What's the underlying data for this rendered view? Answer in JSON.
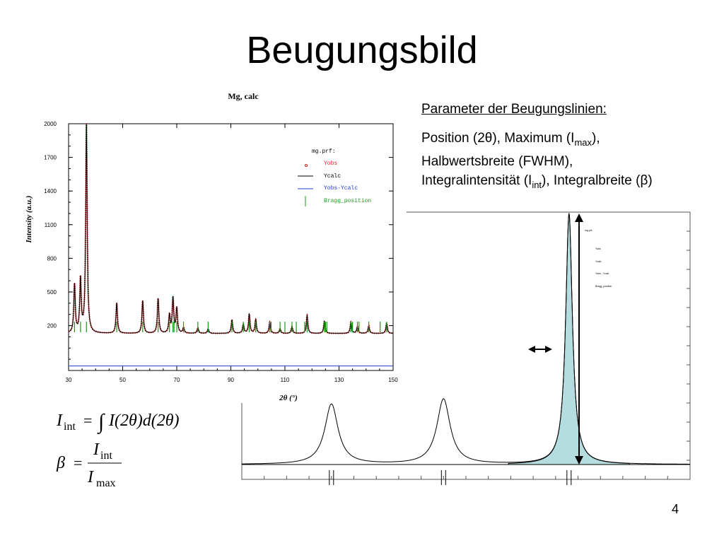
{
  "slide": {
    "title": "Beugungsbild",
    "page_number": "4",
    "parameters_heading": "Parameter der Beugungslinien:",
    "parameters_lines": [
      "Position (2θ), Maximum (I",
      "max",
      "),",
      "Halbwertsbreite (FWHM),",
      "Integralintensität (I",
      "int",
      "), Integralbreite (β)"
    ]
  },
  "formulas": {
    "integral": {
      "lhs": "I",
      "lhs_sub": "int",
      "equals": "=",
      "integral_sign": "∫",
      "rhs": "I(2θ)d(2θ)"
    },
    "beta": {
      "lhs": "β",
      "equals": "=",
      "num": "I",
      "num_sub": "int",
      "den": "I",
      "den_sub": "max"
    }
  },
  "chart_data": [
    {
      "type": "line",
      "title": "Mg, calc",
      "xlabel": "2θ (°)",
      "ylabel": "Intensity (a.u.)",
      "xlim": [
        30,
        150
      ],
      "ylim": [
        -200,
        2000
      ],
      "xticks": [
        30,
        50,
        70,
        90,
        110,
        130,
        150
      ],
      "yticks": [
        200,
        500,
        800,
        1100,
        1400,
        1700,
        2000
      ],
      "legend": {
        "placement": "top-right",
        "title": "mg.prf:",
        "entries": [
          {
            "name": "Yobs",
            "color": "#e02020"
          },
          {
            "name": "Ycalc",
            "color": "#000000"
          },
          {
            "name": "Yobs-Ycalc",
            "color": "#1f3fd0"
          },
          {
            "name": "Bragg_position",
            "color": "#1a9a1a"
          }
        ]
      },
      "baseline": 130,
      "difference_level": -160,
      "peaks": [
        {
          "x": 32.2,
          "y": 560
        },
        {
          "x": 34.4,
          "y": 600
        },
        {
          "x": 36.6,
          "y": 2000
        },
        {
          "x": 47.8,
          "y": 400
        },
        {
          "x": 57.4,
          "y": 420
        },
        {
          "x": 63.1,
          "y": 440
        },
        {
          "x": 67.3,
          "y": 290
        },
        {
          "x": 68.6,
          "y": 440
        },
        {
          "x": 70.0,
          "y": 350
        },
        {
          "x": 72.5,
          "y": 180
        },
        {
          "x": 77.8,
          "y": 180
        },
        {
          "x": 81.6,
          "y": 170
        },
        {
          "x": 90.4,
          "y": 250
        },
        {
          "x": 94.6,
          "y": 210
        },
        {
          "x": 96.8,
          "y": 300
        },
        {
          "x": 99.2,
          "y": 250
        },
        {
          "x": 104.4,
          "y": 230
        },
        {
          "x": 108.2,
          "y": 170
        },
        {
          "x": 112.6,
          "y": 190
        },
        {
          "x": 118.2,
          "y": 290
        },
        {
          "x": 124.6,
          "y": 240
        },
        {
          "x": 134.4,
          "y": 230
        },
        {
          "x": 136.8,
          "y": 190
        },
        {
          "x": 141.0,
          "y": 200
        },
        {
          "x": 147.6,
          "y": 220
        }
      ],
      "bragg_positions": [
        32.2,
        34.4,
        36.6,
        47.8,
        57.4,
        63.1,
        67.3,
        68.6,
        69.0,
        70.0,
        72.5,
        77.8,
        81.6,
        90.4,
        94.6,
        96.8,
        99.2,
        104.4,
        104.9,
        108.2,
        110.0,
        112.6,
        114.2,
        117.3,
        118.2,
        124.6,
        125.0,
        125.5,
        134.4,
        135.0,
        136.8,
        137.4,
        141.0,
        145.2,
        147.6
      ]
    },
    {
      "type": "line",
      "title": "",
      "legend": {
        "title": "mg.prf:",
        "entries": [
          "Yobs",
          "Ycalc",
          "Yobs - Ycalc",
          "Bragg_position"
        ]
      },
      "peaks": [
        {
          "x": 0.2,
          "y": 0.24
        },
        {
          "x": 0.45,
          "y": 0.26
        },
        {
          "x": 0.73,
          "y": 1.0
        }
      ],
      "highlighted_peak_index": 2,
      "annotations": [
        "FWHM",
        "Imax"
      ]
    }
  ]
}
